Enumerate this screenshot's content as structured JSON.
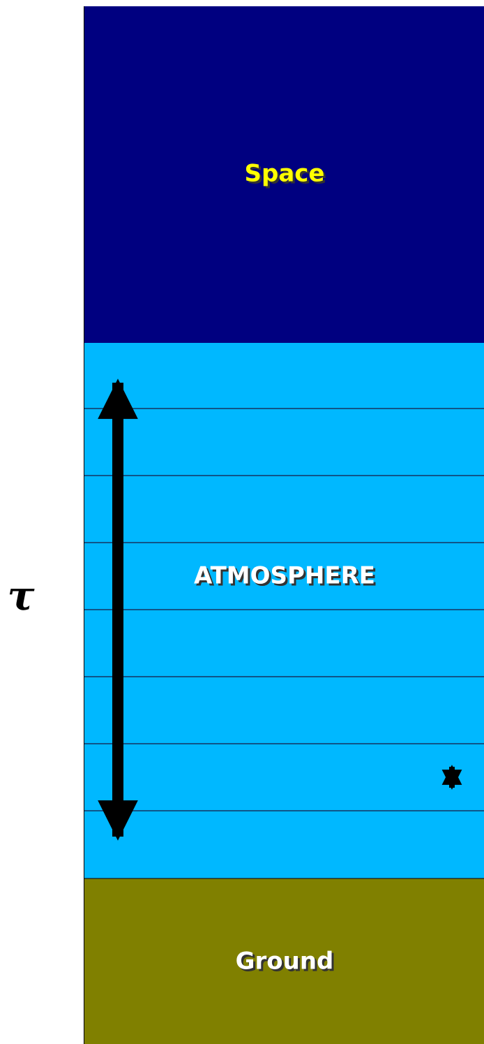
{
  "labels": {
    "space": "Space",
    "atmosphere": "ATMOSPHERE",
    "ground": "Ground",
    "optical_depth_symbol": "τ"
  },
  "atmosphere_layer_count": 8,
  "colors": {
    "space": "#000080",
    "atmosphere": "#00b8ff",
    "ground": "#808000",
    "space_label": "#ffff00",
    "white_label": "#ffffff",
    "label_shadow": "#333333",
    "arrow": "#000000",
    "layer_line": "#1a1a40"
  }
}
